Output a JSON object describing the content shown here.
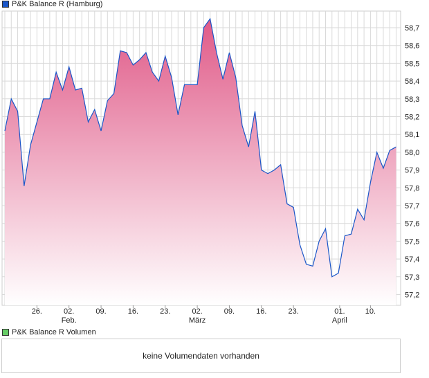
{
  "colors": {
    "line": "#1a56c8",
    "fill_top": "#e05a88",
    "fill_bottom": "#ffffff",
    "grid": "#d9d9d9",
    "volume_legend": "#66cc66"
  },
  "price_legend": "P&K Balance R (Hamburg)",
  "volume_legend": "P&K Balance R Volumen",
  "volume_empty_text": "keine Volumendaten vorhanden",
  "chart_data": {
    "type": "area",
    "title": "P&K Balance R (Hamburg)",
    "ylim": [
      57.14,
      58.8
    ],
    "yticks": [
      "58,7",
      "58,6",
      "58,5",
      "58,4",
      "58,3",
      "58,2",
      "58,1",
      "58,0",
      "57,9",
      "57,8",
      "57,7",
      "57,6",
      "57,5",
      "57,4",
      "57,3",
      "57,2"
    ],
    "ytick_values": [
      58.7,
      58.6,
      58.5,
      58.4,
      58.3,
      58.2,
      58.1,
      58.0,
      57.9,
      57.8,
      57.7,
      57.6,
      57.5,
      57.4,
      57.3,
      57.2
    ],
    "xticks": [
      {
        "i": 5,
        "label": "26.",
        "sub": ""
      },
      {
        "i": 10,
        "label": "02.",
        "sub": "Feb."
      },
      {
        "i": 15,
        "label": "09.",
        "sub": ""
      },
      {
        "i": 20,
        "label": "16.",
        "sub": ""
      },
      {
        "i": 25,
        "label": "23.",
        "sub": ""
      },
      {
        "i": 30,
        "label": "02.",
        "sub": "März"
      },
      {
        "i": 35,
        "label": "09.",
        "sub": ""
      },
      {
        "i": 40,
        "label": "16.",
        "sub": ""
      },
      {
        "i": 45,
        "label": "23.",
        "sub": ""
      },
      {
        "i": 52.2,
        "label": "01.",
        "sub": "April"
      },
      {
        "i": 57,
        "label": "10.",
        "sub": ""
      }
    ],
    "values": [
      58.12,
      58.3,
      58.23,
      57.81,
      58.04,
      58.17,
      58.3,
      58.3,
      58.45,
      58.35,
      58.48,
      58.35,
      58.36,
      58.17,
      58.24,
      58.12,
      58.29,
      58.33,
      58.57,
      58.56,
      58.49,
      58.52,
      58.56,
      58.45,
      58.4,
      58.54,
      58.42,
      58.21,
      58.38,
      58.38,
      58.38,
      58.7,
      58.75,
      58.56,
      58.41,
      58.56,
      58.42,
      58.15,
      58.03,
      58.23,
      57.9,
      57.88,
      57.9,
      57.93,
      57.71,
      57.69,
      57.48,
      57.37,
      57.36,
      57.5,
      57.57,
      57.3,
      57.32,
      57.53,
      57.54,
      57.68,
      57.62,
      57.83,
      58.0,
      57.91,
      58.01,
      58.03
    ],
    "grid": true
  }
}
